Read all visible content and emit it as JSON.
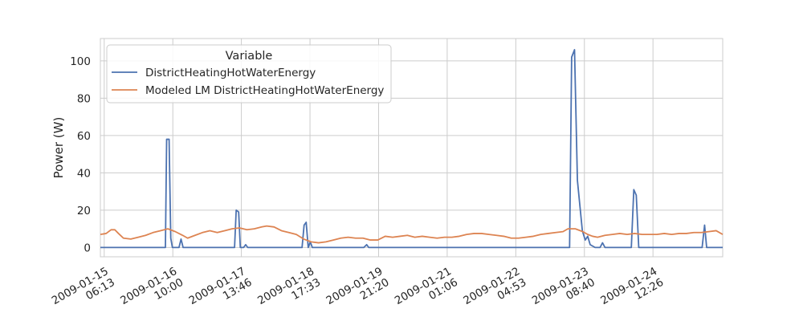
{
  "chart_data": {
    "type": "line",
    "ylabel": "Power (W)",
    "xlabel": "",
    "ylim": [
      -5,
      112
    ],
    "yticks": [
      0,
      20,
      40,
      60,
      80,
      100
    ],
    "x_start": "2009-01-15 04:40",
    "x_end": "2009-01-25 16:40",
    "grid": true,
    "legend_title": "Variable",
    "legend_position": "upper-left",
    "xticks": [
      {
        "line1": "2009-01-15",
        "line2": "06:13",
        "t": "2009-01-15 06:13"
      },
      {
        "line1": "2009-01-16",
        "line2": "10:00",
        "t": "2009-01-16 10:00"
      },
      {
        "line1": "2009-01-17",
        "line2": "13:46",
        "t": "2009-01-17 13:46"
      },
      {
        "line1": "2009-01-18",
        "line2": "17:33",
        "t": "2009-01-18 17:33"
      },
      {
        "line1": "2009-01-19",
        "line2": "21:20",
        "t": "2009-01-19 21:20"
      },
      {
        "line1": "2009-01-21",
        "line2": "01:06",
        "t": "2009-01-21 01:06"
      },
      {
        "line1": "2009-01-22",
        "line2": "04:53",
        "t": "2009-01-22 04:53"
      },
      {
        "line1": "2009-01-23",
        "line2": "08:40",
        "t": "2009-01-23 08:40"
      },
      {
        "line1": "2009-01-24",
        "line2": "12:26",
        "t": "2009-01-24 12:26"
      }
    ],
    "series": [
      {
        "name": "DistrictHeatingHotWaterEnergy",
        "color": "#4c72b0",
        "points": [
          [
            "2009-01-15 04:40",
            0
          ],
          [
            "2009-01-16 07:00",
            0
          ],
          [
            "2009-01-16 07:30",
            58
          ],
          [
            "2009-01-16 08:30",
            58
          ],
          [
            "2009-01-16 09:10",
            5
          ],
          [
            "2009-01-16 09:50",
            0
          ],
          [
            "2009-01-16 12:30",
            0
          ],
          [
            "2009-01-16 13:20",
            4.5
          ],
          [
            "2009-01-16 14:10",
            0
          ],
          [
            "2009-01-17 11:00",
            0
          ],
          [
            "2009-01-17 11:40",
            20
          ],
          [
            "2009-01-17 12:40",
            19
          ],
          [
            "2009-01-17 13:20",
            0
          ],
          [
            "2009-01-17 14:40",
            0
          ],
          [
            "2009-01-17 15:30",
            1.5
          ],
          [
            "2009-01-17 16:20",
            0
          ],
          [
            "2009-01-18 14:20",
            0
          ],
          [
            "2009-01-18 15:10",
            12
          ],
          [
            "2009-01-18 16:00",
            13.5
          ],
          [
            "2009-01-18 16:50",
            0
          ],
          [
            "2009-01-18 17:40",
            3
          ],
          [
            "2009-01-18 18:30",
            0
          ],
          [
            "2009-01-19 15:20",
            0
          ],
          [
            "2009-01-19 16:30",
            1.5
          ],
          [
            "2009-01-19 17:20",
            0
          ],
          [
            "2009-01-23 02:40",
            0
          ],
          [
            "2009-01-23 03:30",
            102
          ],
          [
            "2009-01-23 04:40",
            106
          ],
          [
            "2009-01-23 05:50",
            36
          ],
          [
            "2009-01-23 07:50",
            9
          ],
          [
            "2009-01-23 09:00",
            4
          ],
          [
            "2009-01-23 10:00",
            6
          ],
          [
            "2009-01-23 11:00",
            1.5
          ],
          [
            "2009-01-23 13:00",
            0
          ],
          [
            "2009-01-23 15:00",
            0
          ],
          [
            "2009-01-23 16:00",
            2.5
          ],
          [
            "2009-01-23 17:00",
            0
          ],
          [
            "2009-01-24 03:40",
            0
          ],
          [
            "2009-01-24 04:40",
            31
          ],
          [
            "2009-01-24 05:40",
            28
          ],
          [
            "2009-01-24 06:40",
            0
          ],
          [
            "2009-01-25 08:20",
            0
          ],
          [
            "2009-01-25 09:20",
            12
          ],
          [
            "2009-01-25 10:10",
            0
          ],
          [
            "2009-01-25 16:40",
            0
          ]
        ]
      },
      {
        "name": "Modeled LM DistrictHeatingHotWaterEnergy",
        "color": "#dd8452",
        "points": [
          [
            "2009-01-15 04:40",
            7
          ],
          [
            "2009-01-15 07:00",
            7.5
          ],
          [
            "2009-01-15 09:00",
            9.5
          ],
          [
            "2009-01-15 10:30",
            9.5
          ],
          [
            "2009-01-15 12:00",
            7.5
          ],
          [
            "2009-01-15 14:00",
            5
          ],
          [
            "2009-01-15 17:00",
            4.5
          ],
          [
            "2009-01-15 20:00",
            5.5
          ],
          [
            "2009-01-15 23:00",
            6.5
          ],
          [
            "2009-01-16 02:00",
            8
          ],
          [
            "2009-01-16 05:00",
            9
          ],
          [
            "2009-01-16 08:00",
            10
          ],
          [
            "2009-01-16 11:00",
            8.5
          ],
          [
            "2009-01-16 14:00",
            6.5
          ],
          [
            "2009-01-16 16:00",
            5
          ],
          [
            "2009-01-16 19:00",
            6.5
          ],
          [
            "2009-01-16 22:00",
            8
          ],
          [
            "2009-01-17 01:00",
            9
          ],
          [
            "2009-01-17 04:00",
            8
          ],
          [
            "2009-01-17 07:00",
            9
          ],
          [
            "2009-01-17 10:00",
            10
          ],
          [
            "2009-01-17 13:00",
            10.5
          ],
          [
            "2009-01-17 16:00",
            9.5
          ],
          [
            "2009-01-17 19:00",
            10
          ],
          [
            "2009-01-17 22:00",
            11
          ],
          [
            "2009-01-18 00:00",
            11.5
          ],
          [
            "2009-01-18 03:00",
            11
          ],
          [
            "2009-01-18 06:00",
            9
          ],
          [
            "2009-01-18 09:00",
            8
          ],
          [
            "2009-01-18 12:00",
            7
          ],
          [
            "2009-01-18 15:00",
            4.5
          ],
          [
            "2009-01-18 18:00",
            3
          ],
          [
            "2009-01-18 21:00",
            2.5
          ],
          [
            "2009-01-19 00:00",
            3
          ],
          [
            "2009-01-19 03:00",
            4
          ],
          [
            "2009-01-19 06:00",
            5
          ],
          [
            "2009-01-19 09:00",
            5.5
          ],
          [
            "2009-01-19 12:00",
            5
          ],
          [
            "2009-01-19 15:00",
            5
          ],
          [
            "2009-01-19 18:00",
            4
          ],
          [
            "2009-01-19 21:00",
            4
          ],
          [
            "2009-01-20 00:00",
            6
          ],
          [
            "2009-01-20 03:00",
            5.5
          ],
          [
            "2009-01-20 06:00",
            6
          ],
          [
            "2009-01-20 09:00",
            6.5
          ],
          [
            "2009-01-20 12:00",
            5.5
          ],
          [
            "2009-01-20 15:00",
            6
          ],
          [
            "2009-01-20 18:00",
            5.5
          ],
          [
            "2009-01-20 21:00",
            5
          ],
          [
            "2009-01-21 00:00",
            5.5
          ],
          [
            "2009-01-21 03:00",
            5.5
          ],
          [
            "2009-01-21 06:00",
            6
          ],
          [
            "2009-01-21 09:00",
            7
          ],
          [
            "2009-01-21 12:00",
            7.5
          ],
          [
            "2009-01-21 15:00",
            7.5
          ],
          [
            "2009-01-21 18:00",
            7
          ],
          [
            "2009-01-21 21:00",
            6.5
          ],
          [
            "2009-01-22 00:00",
            6
          ],
          [
            "2009-01-22 03:00",
            5
          ],
          [
            "2009-01-22 06:00",
            5
          ],
          [
            "2009-01-22 09:00",
            5.5
          ],
          [
            "2009-01-22 12:00",
            6
          ],
          [
            "2009-01-22 15:00",
            7
          ],
          [
            "2009-01-22 18:00",
            7.5
          ],
          [
            "2009-01-22 21:00",
            8
          ],
          [
            "2009-01-23 00:00",
            8.5
          ],
          [
            "2009-01-23 02:00",
            10
          ],
          [
            "2009-01-23 05:00",
            10
          ],
          [
            "2009-01-23 08:00",
            8.5
          ],
          [
            "2009-01-23 10:00",
            7
          ],
          [
            "2009-01-23 12:00",
            6
          ],
          [
            "2009-01-23 14:00",
            5.5
          ],
          [
            "2009-01-23 17:00",
            6.5
          ],
          [
            "2009-01-23 20:00",
            7
          ],
          [
            "2009-01-23 23:00",
            7.5
          ],
          [
            "2009-01-24 02:00",
            7
          ],
          [
            "2009-01-24 05:00",
            7.5
          ],
          [
            "2009-01-24 08:00",
            7
          ],
          [
            "2009-01-24 11:00",
            7
          ],
          [
            "2009-01-24 14:00",
            7
          ],
          [
            "2009-01-24 17:00",
            7.5
          ],
          [
            "2009-01-24 20:00",
            7
          ],
          [
            "2009-01-24 23:00",
            7.5
          ],
          [
            "2009-01-25 02:00",
            7.5
          ],
          [
            "2009-01-25 05:00",
            8
          ],
          [
            "2009-01-25 08:00",
            8
          ],
          [
            "2009-01-25 11:00",
            8.5
          ],
          [
            "2009-01-25 14:00",
            9
          ],
          [
            "2009-01-25 16:40",
            7
          ]
        ]
      }
    ]
  }
}
